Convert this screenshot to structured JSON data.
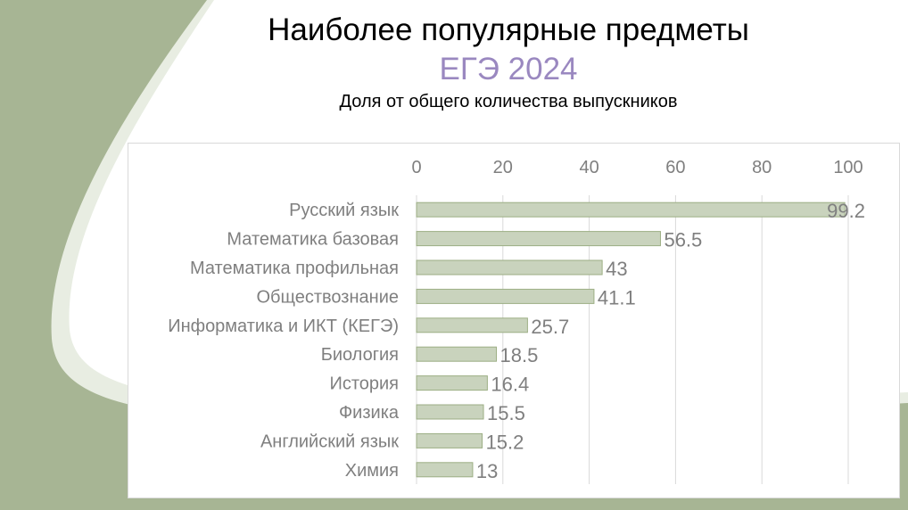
{
  "slide": {
    "title": "Наиболее популярные предметы",
    "subtitle": "ЕГЭ 2024",
    "caption": "Доля от общего количества выпускников"
  },
  "colors": {
    "background": "#a7b594",
    "bar_fill": "#c9d3bd",
    "bar_stroke": "#9cae84",
    "accent": "#9a88c0"
  },
  "chart_data": {
    "type": "bar",
    "orientation": "horizontal",
    "title": "Доля от общего количества выпускников",
    "categories": [
      "Русский язык",
      "Математика базовая",
      "Математика профильная",
      "Обществознание",
      "Информатика и ИКТ (КЕГЭ)",
      "Биология",
      "История",
      "Физика",
      "Английский язык",
      "Химия"
    ],
    "values": [
      99.2,
      56.5,
      43,
      41.1,
      25.7,
      18.5,
      16.4,
      15.5,
      15.2,
      13
    ],
    "value_labels": [
      "99.2",
      "56.5",
      "43",
      "41.1",
      "25.7",
      "18.5",
      "16.4",
      "15.5",
      "15.2",
      "13"
    ],
    "xlim": [
      0,
      100
    ],
    "xticks": [
      "0",
      "20",
      "40",
      "60",
      "80",
      "100"
    ],
    "x_axis_position": "top",
    "grid": true,
    "legend": "none"
  }
}
